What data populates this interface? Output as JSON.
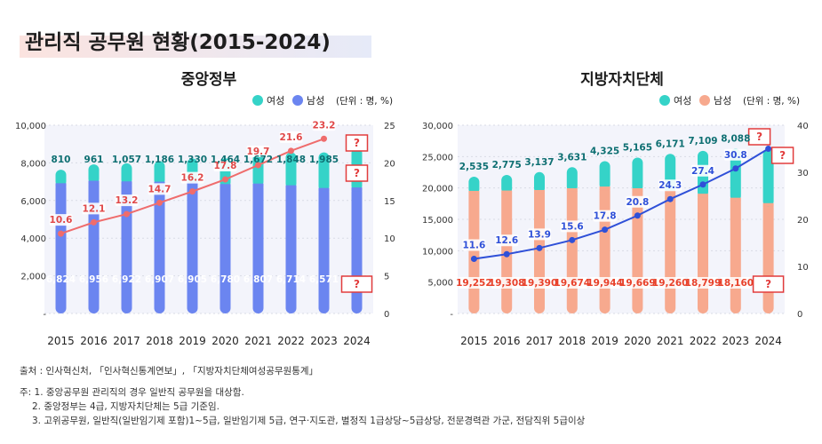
{
  "title": "관리직 공무원 현황(2015-2024)",
  "source": "출처 : 인사혁신처, 「인사혁신통계연보」, 「지방자치단체여성공무원통계」",
  "notes": [
    "주: 1.  중앙공무원 관리직의 경우 일반직 공무원을 대상함.",
    "2. 중앙정부는 4급, 지방자치단체는 5급 기준임.",
    "3. 고위공무원, 일반직(일반임기제 포함)1~5급, 일반임기제 5급, 연구·지도관, 별정직 1급상당~5급상당, 전문경력관 가군, 전담직위 5급이상"
  ],
  "colors": {
    "female": "#35d3c8",
    "male_central": "#6b85f0",
    "male_local": "#f7a98e",
    "ratio_line_central": "#ef6c6c",
    "ratio_line_local": "#2f50d8",
    "female_label": "#0e6f72",
    "male_label_central": "#ffffff",
    "male_label_local": "#e8412a",
    "highlight_box": "#e23c3c"
  },
  "chart_data": [
    {
      "type": "bar",
      "title": "중앙정부",
      "legend": [
        "여성",
        "남성"
      ],
      "unit_note": "(단위 : 명, %)",
      "categories": [
        "2015",
        "2016",
        "2017",
        "2018",
        "2019",
        "2020",
        "2021",
        "2022",
        "2023",
        "2024"
      ],
      "series": [
        {
          "name": "남성",
          "values": [
            6824,
            6956,
            6922,
            6907,
            6905,
            6780,
            6807,
            6714,
            6571,
            null
          ],
          "labels": [
            "6,824",
            "6,956",
            "6,922",
            "6,907",
            "6,905",
            "6,780",
            "6,807",
            "6,714",
            "6,571",
            "?"
          ]
        },
        {
          "name": "여성",
          "values": [
            810,
            961,
            1057,
            1186,
            1330,
            1464,
            1672,
            1848,
            1985,
            null
          ],
          "labels": [
            "810",
            "961",
            "1,057",
            "1,186",
            "1,330",
            "1,464",
            "1,672",
            "1,848",
            "1,985",
            "?"
          ]
        }
      ],
      "ratio": {
        "values": [
          10.6,
          12.1,
          13.2,
          14.7,
          16.2,
          17.8,
          19.7,
          21.6,
          23.2,
          null
        ],
        "labels": [
          "10.6",
          "12.1",
          "13.2",
          "14.7",
          "16.2",
          "17.8",
          "19.7",
          "21.6",
          "23.2",
          "?"
        ]
      },
      "left_axis": {
        "ylim": [
          0,
          10000
        ],
        "ticks": [
          0,
          2000,
          4000,
          6000,
          8000,
          10000
        ],
        "tick_labels": [
          "-",
          "2,000",
          "4,000",
          "6,000",
          "8,000",
          "10,000"
        ]
      },
      "right_axis": {
        "ylim": [
          0,
          25
        ],
        "ticks": [
          0,
          5,
          10,
          15,
          20,
          25
        ],
        "tick_labels": [
          "0",
          "5",
          "10",
          "15",
          "20",
          "25"
        ]
      },
      "legend_position": "top-right",
      "grid": true
    },
    {
      "type": "bar",
      "title": "지방자치단체",
      "legend": [
        "여성",
        "남성"
      ],
      "unit_note": "(단위 : 명, %)",
      "categories": [
        "2015",
        "2016",
        "2017",
        "2018",
        "2019",
        "2020",
        "2021",
        "2022",
        "2023",
        "2024"
      ],
      "series": [
        {
          "name": "남성",
          "values": [
            19252,
            19308,
            19390,
            19674,
            19944,
            19669,
            19260,
            18799,
            18160,
            null
          ],
          "labels": [
            "19,252",
            "19,308",
            "19,390",
            "19,674",
            "19,944",
            "19,669",
            "19,260",
            "18,799",
            "18,160",
            "?"
          ]
        },
        {
          "name": "여성",
          "values": [
            2535,
            2775,
            3137,
            3631,
            4325,
            5165,
            6171,
            7109,
            8088,
            null
          ],
          "labels": [
            "2,535",
            "2,775",
            "3,137",
            "3,631",
            "4,325",
            "5,165",
            "6,171",
            "7,109",
            "8,088",
            "?"
          ]
        }
      ],
      "ratio": {
        "values": [
          11.6,
          12.6,
          13.9,
          15.6,
          17.8,
          20.8,
          24.3,
          27.4,
          30.8,
          35.0
        ],
        "labels": [
          "11.6",
          "12.6",
          "13.9",
          "15.6",
          "17.8",
          "20.8",
          "24.3",
          "27.4",
          "30.8",
          "?"
        ]
      },
      "left_axis": {
        "ylim": [
          0,
          30000
        ],
        "ticks": [
          0,
          5000,
          10000,
          15000,
          20000,
          25000,
          30000
        ],
        "tick_labels": [
          "-",
          "5,000",
          "10,000",
          "15,000",
          "20,000",
          "25,000",
          "30,000"
        ]
      },
      "right_axis": {
        "ylim": [
          0,
          40
        ],
        "ticks": [
          0,
          10,
          20,
          30,
          40
        ],
        "tick_labels": [
          "0",
          "10",
          "20",
          "30",
          "40"
        ]
      },
      "legend_position": "top-right",
      "grid": true
    }
  ]
}
